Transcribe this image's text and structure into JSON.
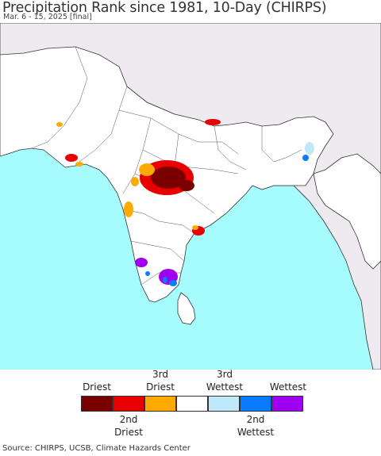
{
  "title": "Precipitation Rank since 1981, 10-Day (CHIRPS)",
  "subtitle": "Mar. 6 - 15, 2025 [final]",
  "legend": {
    "top_labels": [
      {
        "text": "Driest"
      },
      {
        "text": "3rd\nDriest"
      },
      {
        "text": "3rd\nWettest"
      },
      {
        "text": "Wettest"
      }
    ],
    "bottom_labels": [
      {
        "text": "2nd\nDriest"
      },
      {
        "text": "2nd\nWettest"
      }
    ],
    "classes": [
      {
        "rank": "Driest",
        "color": "#7a0000"
      },
      {
        "rank": "2nd Driest",
        "color": "#e80000"
      },
      {
        "rank": "3rd Driest",
        "color": "#ffaa00"
      },
      {
        "rank": "Normal",
        "color": "#ffffff"
      },
      {
        "rank": "3rd Wettest",
        "color": "#bfe8fa"
      },
      {
        "rank": "2nd Wettest",
        "color": "#0a7bff"
      },
      {
        "rank": "Wettest",
        "color": "#a000f0"
      }
    ]
  },
  "colors": {
    "ocean": "#a6fcfc",
    "land": "#ffffff",
    "outside_land": "#efeaf0",
    "borders": "#333333"
  },
  "source": "Source: CHIRPS, UCSB, Climate Hazards Center"
}
